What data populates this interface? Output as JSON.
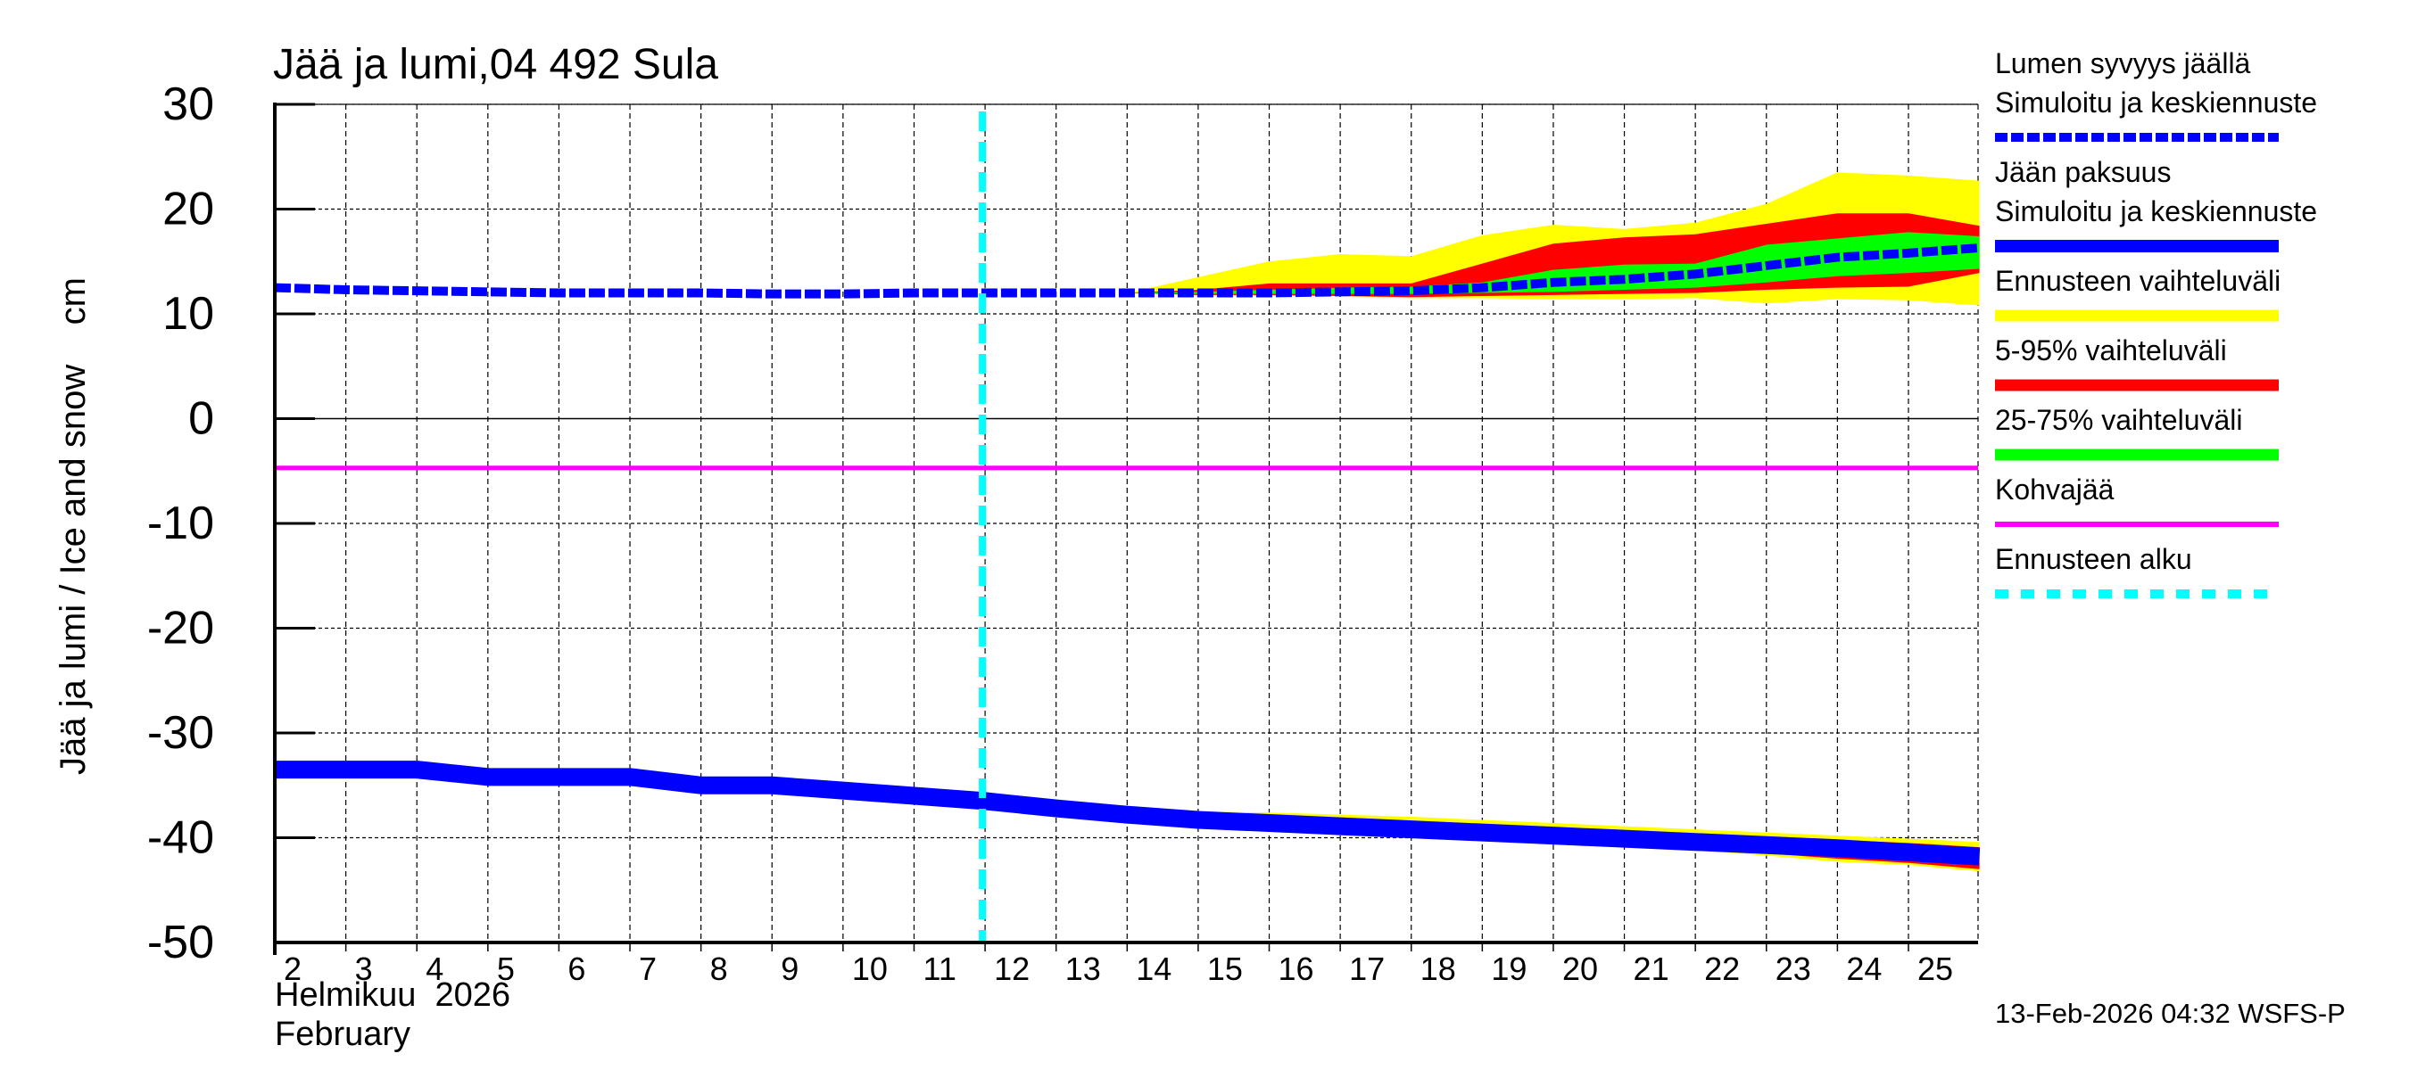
{
  "title": "Jää ja lumi,04 492 Sula",
  "y_axis_label": "Jää ja lumi / Ice and snow    cm",
  "x_axis": {
    "month_fi": "Helmikuu  2026",
    "month_en": "February",
    "ticks": [
      "2",
      "3",
      "4",
      "5",
      "6",
      "7",
      "8",
      "9",
      "10",
      "11",
      "12",
      "13",
      "14",
      "15",
      "16",
      "17",
      "18",
      "19",
      "20",
      "21",
      "22",
      "23",
      "24",
      "25"
    ]
  },
  "y_axis": {
    "ticks": [
      "30",
      "20",
      "10",
      "0",
      "-10",
      "-20",
      "-30",
      "-40",
      "-50"
    ]
  },
  "legend": {
    "items": [
      {
        "label1": "Lumen syvyys jäällä",
        "label2": "Simuloitu ja keskiennuste",
        "color": "#0000ff",
        "style": "dashed-thick"
      },
      {
        "label1": "Jään paksuus",
        "label2": "Simuloitu ja keskiennuste",
        "color": "#0000ff",
        "style": "solid-thick"
      },
      {
        "label1": "Ennusteen vaihteluväli",
        "color": "#ffff00",
        "style": "solid"
      },
      {
        "label1": "5-95% vaihteluväli",
        "color": "#ff0000",
        "style": "solid"
      },
      {
        "label1": "25-75% vaihteluväli",
        "color": "#00ff00",
        "style": "solid"
      },
      {
        "label1": "Kohvajää",
        "color": "#ff00ff",
        "style": "solid-thin"
      },
      {
        "label1": "Ennusteen alku",
        "color": "#00ffff",
        "style": "dashed"
      }
    ]
  },
  "footer": "13-Feb-2026 04:32 WSFS-P",
  "chart_data": {
    "type": "line",
    "title": "Jää ja lumi,04 492 Sula",
    "xlabel": "Helmikuu 2026 / February",
    "ylabel": "Jää ja lumi / Ice and snow cm",
    "ylim": [
      -50,
      30
    ],
    "xlim": [
      2,
      26
    ],
    "grid": true,
    "legend_position": "right",
    "forecast_start_day": 12,
    "kohvajaa": -4.7,
    "snow_depth": {
      "name": "Lumen syvyys jäällä - Simuloitu ja keskiennuste",
      "x": [
        2,
        3,
        4,
        5,
        6,
        7,
        8,
        9,
        10,
        11,
        12,
        13,
        14,
        15,
        16,
        17,
        18,
        19,
        20,
        21,
        22,
        23,
        24,
        25,
        26
      ],
      "y": [
        12.5,
        12.3,
        12.2,
        12.1,
        12.0,
        12.0,
        12.0,
        11.9,
        11.9,
        12.0,
        12.0,
        12.0,
        12.0,
        12.0,
        12.0,
        12.1,
        12.2,
        12.5,
        13.0,
        13.3,
        13.8,
        14.6,
        15.4,
        15.8,
        16.3
      ]
    },
    "ice_thickness": {
      "name": "Jään paksuus - Simuloitu ja keskiennuste",
      "x": [
        2,
        3,
        4,
        5,
        6,
        7,
        8,
        9,
        10,
        11,
        12,
        13,
        14,
        15,
        16,
        17,
        18,
        19,
        20,
        21,
        22,
        23,
        24,
        25,
        26
      ],
      "y": [
        -33.5,
        -33.5,
        -33.5,
        -34.2,
        -34.2,
        -34.2,
        -35.0,
        -35.0,
        -35.5,
        -36.0,
        -36.5,
        -37.2,
        -37.8,
        -38.3,
        -38.6,
        -38.9,
        -39.2,
        -39.5,
        -39.8,
        -40.1,
        -40.4,
        -40.7,
        -41.0,
        -41.4,
        -41.8
      ]
    },
    "snow_bands": {
      "x": [
        14,
        15,
        16,
        17,
        18,
        19,
        20,
        21,
        22,
        23,
        24,
        25,
        26
      ],
      "yellow_upper": [
        12.0,
        13.5,
        15.0,
        15.7,
        15.5,
        17.5,
        18.5,
        18.1,
        18.7,
        20.5,
        23.5,
        23.2,
        22.7
      ],
      "red_upper": [
        12.0,
        12.3,
        12.9,
        12.9,
        12.9,
        14.8,
        16.7,
        17.3,
        17.6,
        18.6,
        19.6,
        19.6,
        18.4
      ],
      "green_upper": [
        12.0,
        12.1,
        12.3,
        12.5,
        12.6,
        13.0,
        14.2,
        14.7,
        14.8,
        16.6,
        17.2,
        17.8,
        17.4
      ],
      "green_lower": [
        12.0,
        11.9,
        11.9,
        11.9,
        11.9,
        12.0,
        12.1,
        12.3,
        12.5,
        13.0,
        13.6,
        13.9,
        14.3
      ],
      "red_lower": [
        12.0,
        11.8,
        11.8,
        11.7,
        11.6,
        11.7,
        11.8,
        11.9,
        12.0,
        12.3,
        12.5,
        12.6,
        13.9
      ],
      "yellow_lower": [
        12.0,
        11.8,
        11.7,
        11.7,
        11.5,
        11.5,
        11.4,
        11.4,
        11.5,
        11.0,
        11.4,
        11.3,
        10.8
      ]
    },
    "ice_bands": {
      "x": [
        14,
        15,
        16,
        17,
        18,
        19,
        20,
        21,
        22,
        23,
        24,
        25,
        26
      ],
      "yellow_upper": [
        -37.4,
        -37.5,
        -37.6,
        -37.8,
        -38.0,
        -38.3,
        -38.6,
        -38.9,
        -39.2,
        -39.5,
        -39.8,
        -40.1,
        -40.4
      ],
      "red_upper": [
        -37.5,
        -37.8,
        -38.0,
        -38.2,
        -38.5,
        -38.8,
        -39.0,
        -39.3,
        -39.6,
        -39.9,
        -40.2,
        -40.5,
        -40.9
      ],
      "green_upper": [
        -37.7,
        -38.1,
        -38.4,
        -38.7,
        -39.0,
        -39.3,
        -39.6,
        -39.9,
        -40.2,
        -40.5,
        -40.8,
        -41.1,
        -41.4
      ],
      "green_lower": [
        -37.9,
        -38.5,
        -38.8,
        -39.1,
        -39.4,
        -39.7,
        -40.0,
        -40.3,
        -40.6,
        -40.9,
        -41.2,
        -41.6,
        -42.0
      ],
      "red_lower": [
        -38.0,
        -38.8,
        -39.1,
        -39.5,
        -39.8,
        -40.1,
        -40.4,
        -40.8,
        -41.1,
        -41.5,
        -42.0,
        -42.4,
        -43.0
      ],
      "yellow_lower": [
        -38.1,
        -38.9,
        -39.2,
        -39.6,
        -39.9,
        -40.2,
        -40.5,
        -40.9,
        -41.2,
        -41.7,
        -42.3,
        -42.6,
        -43.2
      ]
    }
  }
}
